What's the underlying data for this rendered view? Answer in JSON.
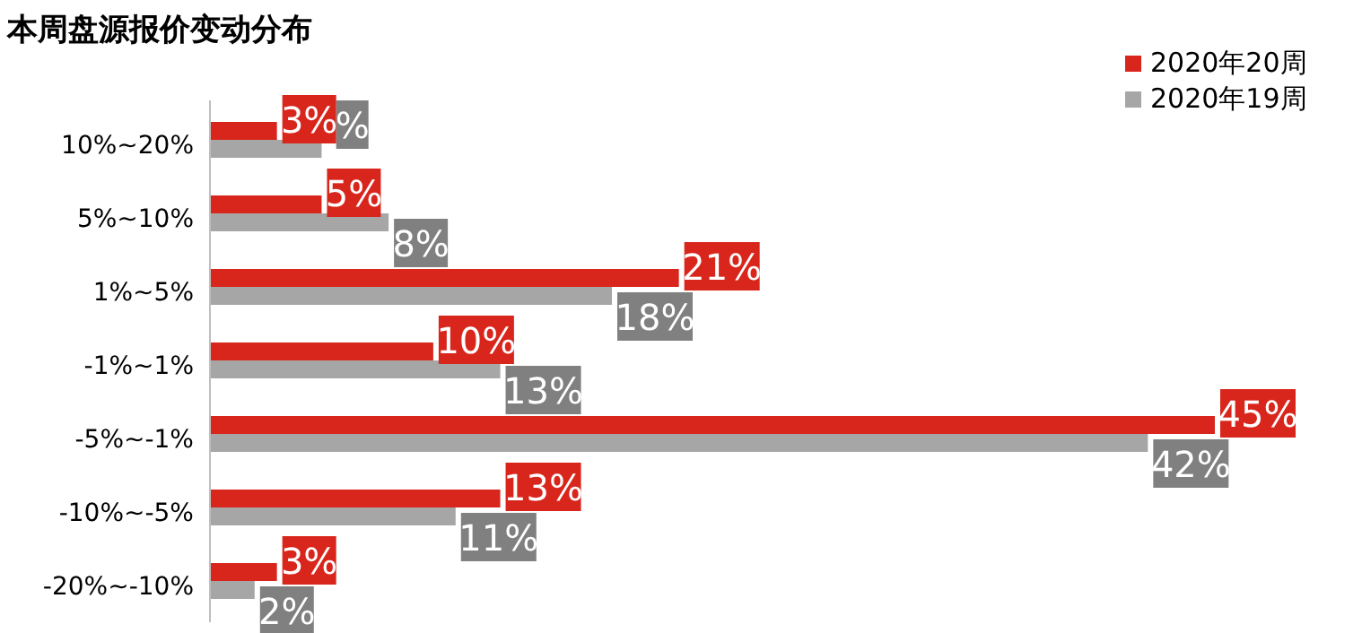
{
  "chart_data": {
    "type": "bar",
    "orientation": "horizontal",
    "title": "本周盘源报价变动分布",
    "categories": [
      "10%~20%",
      "5%~10%",
      "1%~5%",
      "-1%~1%",
      "-5%~-1%",
      "-10%~-5%",
      "-20%~-10%"
    ],
    "series": [
      {
        "name": "2020年20周",
        "color": "#d9261c",
        "values": [
          3,
          5,
          21,
          10,
          45,
          13,
          3
        ],
        "value_labels": [
          "3%",
          "5%",
          "21%",
          "10%",
          "45%",
          "13%",
          "3%"
        ]
      },
      {
        "name": "2020年19周",
        "color": "#a6a6a6",
        "values": [
          5,
          8,
          18,
          13,
          42,
          11,
          2
        ],
        "value_labels": [
          "%",
          "8%",
          "18%",
          "13%",
          "42%",
          "11%",
          "2%"
        ]
      }
    ],
    "data_labels": true,
    "legend": "top right"
  }
}
